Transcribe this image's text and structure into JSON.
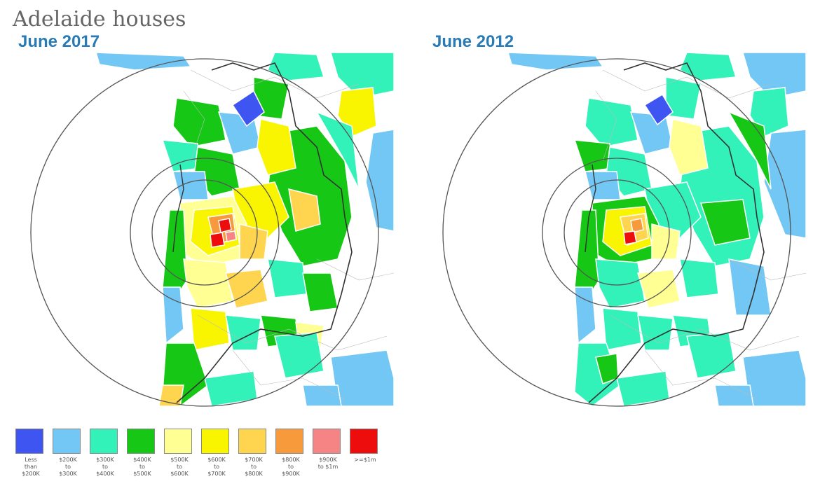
{
  "title": "Adelaide houses",
  "maps": [
    {
      "label": "June 2017"
    },
    {
      "label": "June 2012"
    }
  ],
  "legend": [
    {
      "label": "Less\nthan\n$200K",
      "color": "#3f55f2"
    },
    {
      "label": "$200K\nto\n$300K",
      "color": "#73c7f5"
    },
    {
      "label": "$300K\nto\n$400K",
      "color": "#33f2b9"
    },
    {
      "label": "$400K\nto\n$500K",
      "color": "#16c716"
    },
    {
      "label": "$500K\nto\n$600K",
      "color": "#ffff94"
    },
    {
      "label": "$600K\nto\n$700K",
      "color": "#f9f400"
    },
    {
      "label": "$700K\nto\n$800K",
      "color": "#ffd54f"
    },
    {
      "label": "$800K\nto\n$900K",
      "color": "#f79a3c"
    },
    {
      "label": "$900K\nto $1m",
      "color": "#f78484"
    },
    {
      "label": ">=$1m",
      "color": "#ee0d0d"
    }
  ]
}
